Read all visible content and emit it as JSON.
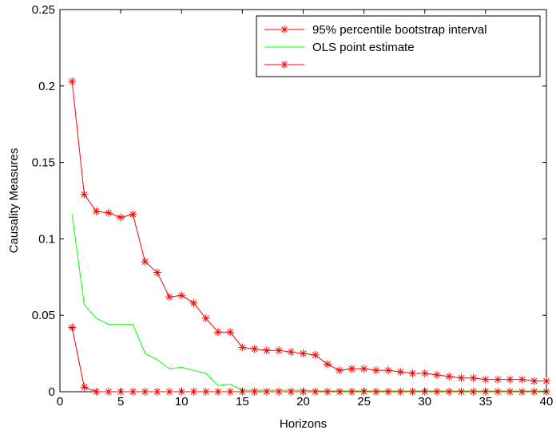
{
  "chart_data": {
    "type": "line",
    "title": "",
    "xlabel": "Horizons",
    "ylabel": "Causality Measures",
    "xlim": [
      0,
      40
    ],
    "ylim": [
      0,
      0.25
    ],
    "xticks": [
      "0",
      "5",
      "10",
      "15",
      "20",
      "25",
      "30",
      "35",
      "40"
    ],
    "yticks": [
      "0",
      "0.05",
      "0.1",
      "0.15",
      "0.2",
      "0.25"
    ],
    "grid": false,
    "legend_position": "top-right",
    "x": [
      1,
      2,
      3,
      4,
      5,
      6,
      7,
      8,
      9,
      10,
      11,
      12,
      13,
      14,
      15,
      16,
      17,
      18,
      19,
      20,
      21,
      22,
      23,
      24,
      25,
      26,
      27,
      28,
      29,
      30,
      31,
      32,
      33,
      34,
      35,
      36,
      37,
      38,
      39,
      40
    ],
    "series": [
      {
        "name": "95% percentile bootstrap interval",
        "color": "#ff0000",
        "marker": "asterisk",
        "values": [
          0.203,
          0.129,
          0.118,
          0.117,
          0.114,
          0.116,
          0.085,
          0.078,
          0.062,
          0.063,
          0.058,
          0.048,
          0.039,
          0.039,
          0.029,
          0.028,
          0.027,
          0.027,
          0.026,
          0.025,
          0.024,
          0.018,
          0.014,
          0.015,
          0.015,
          0.014,
          0.014,
          0.013,
          0.012,
          0.012,
          0.011,
          0.01,
          0.009,
          0.009,
          0.008,
          0.008,
          0.008,
          0.008,
          0.007,
          0.007
        ]
      },
      {
        "name": "OLS point estimate",
        "color": "#00ff00",
        "marker": "none",
        "values": [
          0.116,
          0.057,
          0.048,
          0.044,
          0.044,
          0.044,
          0.025,
          0.021,
          0.015,
          0.016,
          0.014,
          0.012,
          0.004,
          0.005,
          0.001,
          0.001,
          0.001,
          0.001,
          0.001,
          0.001,
          0.0005,
          0.0005,
          0.0005,
          0.0005,
          0.0005,
          0.0005,
          0.0005,
          0.0005,
          0.0005,
          0.0005,
          0.0005,
          0.0005,
          0.0005,
          0.0005,
          0.0005,
          0.0005,
          0.0005,
          0.0005,
          0.0005,
          0.0005
        ]
      },
      {
        "name": "",
        "color": "#ff0000",
        "marker": "asterisk",
        "values": [
          0.042,
          0.003,
          0,
          0,
          0,
          0,
          0,
          0,
          0,
          0,
          0,
          0,
          0,
          0,
          0,
          0,
          0,
          0,
          0,
          0,
          0,
          0,
          0,
          0,
          0,
          0,
          0,
          0,
          0,
          0,
          0,
          0,
          0,
          0,
          0,
          0,
          0,
          0,
          0,
          0
        ]
      }
    ]
  }
}
